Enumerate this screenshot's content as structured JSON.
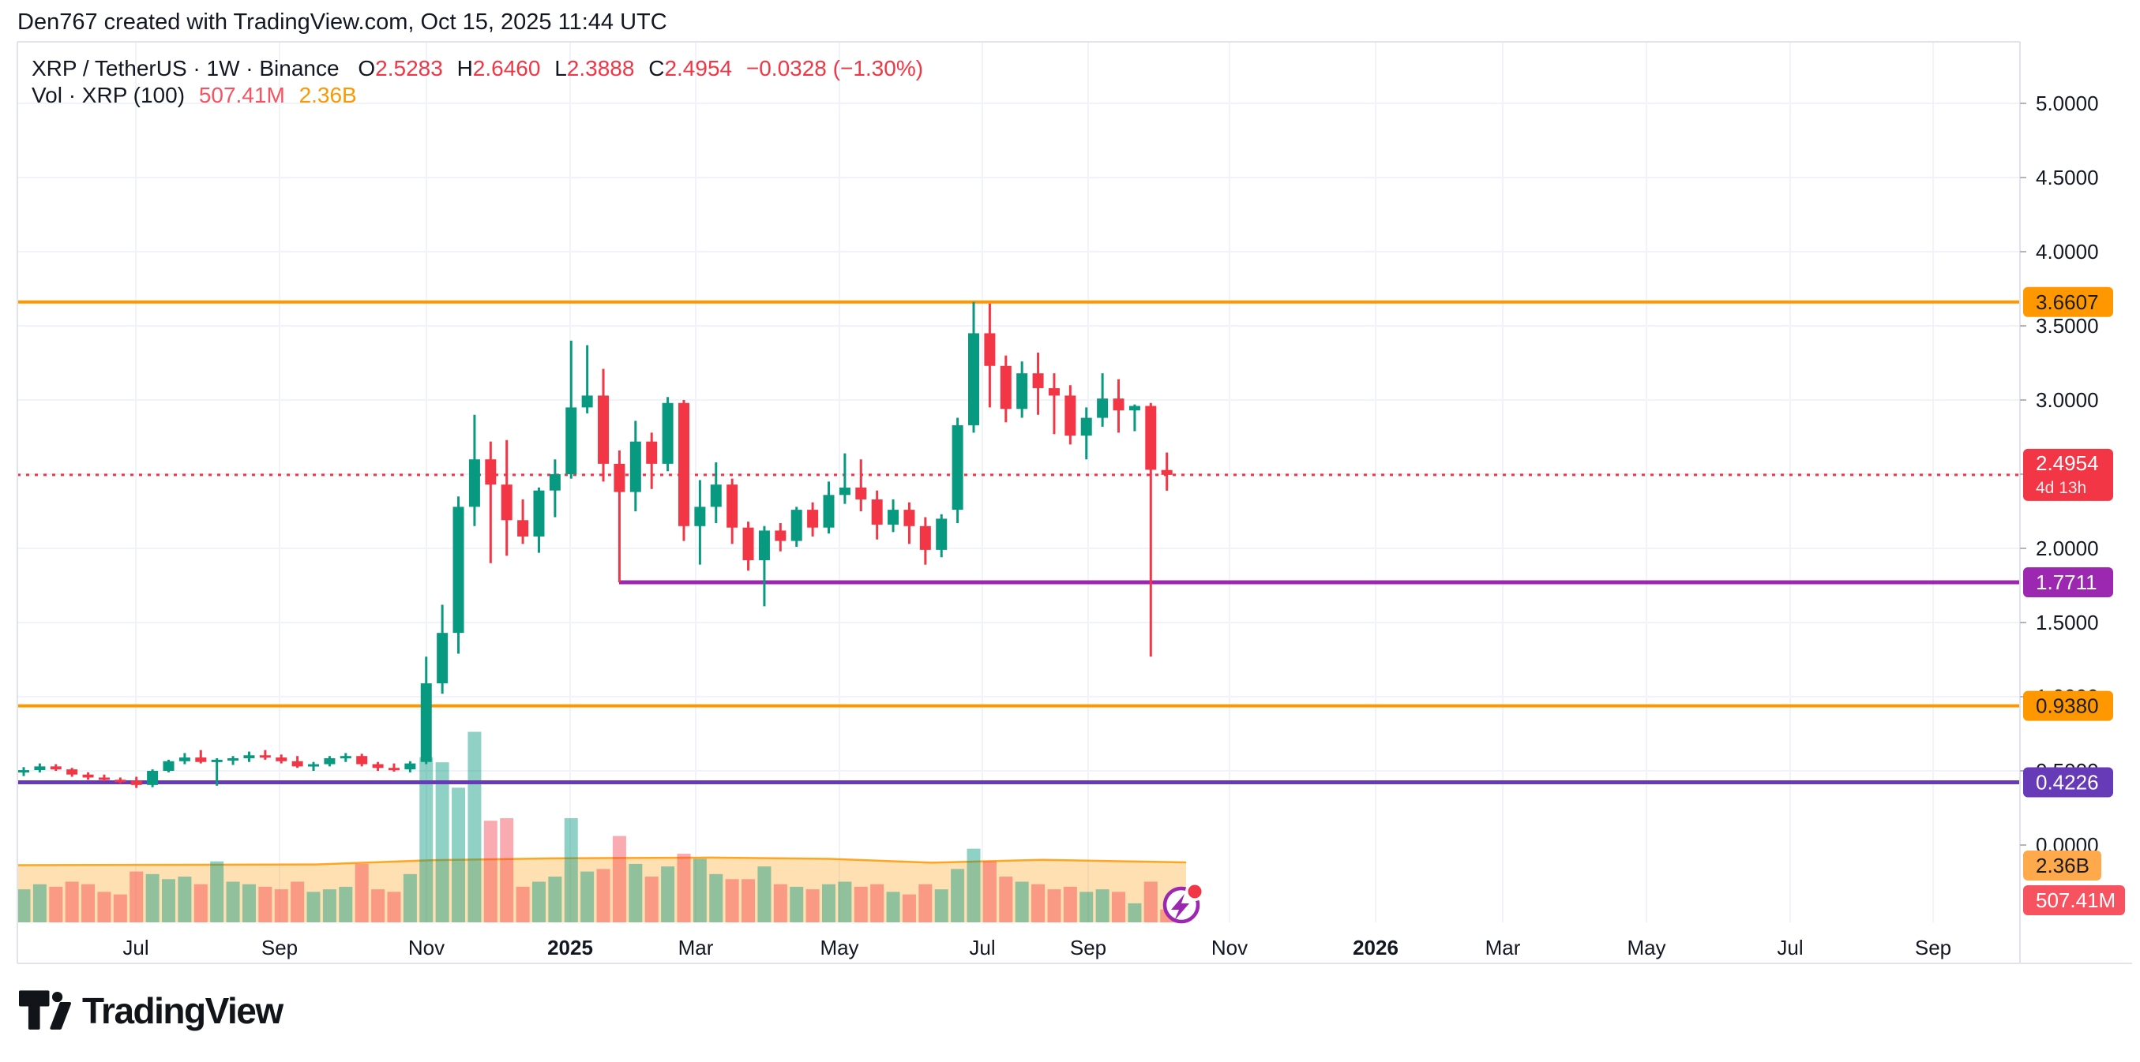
{
  "title": "Den767 created with TradingView.com, Oct 15, 2025 11:44 UTC",
  "legend": {
    "series_title": "XRP / TetherUS · 1W · Binance",
    "o_label": "O",
    "o": "2.5283",
    "h_label": "H",
    "h": "2.6460",
    "l_label": "L",
    "l": "2.3888",
    "c_label": "C",
    "c": "2.4954",
    "change": "−0.0328 (−1.30%)",
    "volume_label": "Vol · XRP (100)",
    "volume_value": "507.41M",
    "volume_ma": "2.36B"
  },
  "watermark": {
    "brand": "TradingView"
  },
  "colors": {
    "up": "#089981",
    "down": "#f23645",
    "vol_up": "rgba(8,153,129,0.45)",
    "vol_down": "rgba(242,54,69,0.42)",
    "vol_ma_fill": "rgba(255,152,0,0.30)",
    "vol_ma_edge": "rgba(255,152,0,0.85)",
    "grid": "#f0f3fa",
    "border": "#e0e3eb",
    "text": "#131722",
    "tick": "#b2b5be",
    "last_price": "#f23645",
    "flash_ring": "#9c27b0",
    "flash_dot": "#f23645"
  },
  "price_scale": {
    "labels": [
      {
        "label": "5.0000",
        "value": 5.0
      },
      {
        "label": "4.5000",
        "value": 4.5
      },
      {
        "label": "4.0000",
        "value": 4.0
      },
      {
        "label": "3.5000",
        "value": 3.5
      },
      {
        "label": "3.0000",
        "value": 3.0
      },
      {
        "label": "2.5000",
        "value": 2.5
      },
      {
        "label": "2.0000",
        "value": 2.0
      },
      {
        "label": "1.5000",
        "value": 1.5
      },
      {
        "label": "1.0000",
        "value": 1.0
      },
      {
        "label": "0.5000",
        "value": 0.5
      },
      {
        "label": "0.0000",
        "value": 0.0
      }
    ]
  },
  "time_axis": {
    "labels": [
      {
        "label": "Jul",
        "x": 172
      },
      {
        "label": "Sep",
        "x": 354
      },
      {
        "label": "Nov",
        "x": 540
      },
      {
        "label": "2025",
        "x": 722,
        "bold": true
      },
      {
        "label": "Mar",
        "x": 881
      },
      {
        "label": "May",
        "x": 1063
      },
      {
        "label": "Jul",
        "x": 1244
      },
      {
        "label": "Sep",
        "x": 1378
      },
      {
        "label": "Nov",
        "x": 1557
      },
      {
        "label": "2026",
        "x": 1742,
        "bold": true
      },
      {
        "label": "Mar",
        "x": 1903
      },
      {
        "label": "May",
        "x": 2085
      },
      {
        "label": "Jul",
        "x": 2267
      },
      {
        "label": "Sep",
        "x": 2448
      }
    ]
  },
  "levels": [
    {
      "label": "3.6607",
      "value": 3.6607,
      "color": "#ff9800",
      "badge_text_color": "#1c1c1c",
      "from_x": 22,
      "stroke_width": 4
    },
    {
      "label": "1.7711",
      "value": 1.7711,
      "color": "#9c27b0",
      "badge_text_color": "#ffffff",
      "from_x": 784,
      "stroke_width": 5
    },
    {
      "label": "0.9380",
      "value": 0.938,
      "color": "#ff9800",
      "badge_text_color": "#1c1c1c",
      "from_x": 22,
      "stroke_width": 4
    },
    {
      "label": "0.4226",
      "value": 0.4226,
      "color": "#673ab7",
      "badge_text_color": "#ffffff",
      "from_x": 22,
      "stroke_width": 5
    }
  ],
  "last_price": {
    "label": "2.4954",
    "value": 2.4954,
    "countdown": "4d 13h",
    "color": "#f23645"
  },
  "volume_badges": [
    {
      "label": "2.36B",
      "bg": "#ffa94d",
      "text_color": "#1c1c1c",
      "y": 1097
    },
    {
      "label": "507.41M",
      "bg": "#f7525f",
      "text_color": "#ffffff",
      "y": 1141
    }
  ],
  "chart_data": {
    "type": "candlestick-with-volume",
    "symbol": "XRP / TetherUS",
    "interval": "1W",
    "exchange": "Binance",
    "title": "XRP / TetherUS · 1W · Binance",
    "ylim": [
      0.0,
      5.4
    ],
    "grid": true,
    "price_gridline_step": 0.5,
    "current_bar": {
      "o": 2.5283,
      "h": 2.646,
      "l": 2.3888,
      "c": 2.4954,
      "change": -0.0328,
      "change_pct": -1.3,
      "volume": "507.41M"
    },
    "volume_ma_label": "2.36B",
    "volume_ma_b": 2.36,
    "volume_ma_profile": [
      [
        22,
        2.25
      ],
      [
        400,
        2.28
      ],
      [
        550,
        2.45
      ],
      [
        700,
        2.52
      ],
      [
        900,
        2.55
      ],
      [
        1050,
        2.5
      ],
      [
        1180,
        2.35
      ],
      [
        1320,
        2.46
      ],
      [
        1502,
        2.36
      ]
    ],
    "candles_format": [
      "open",
      "high",
      "low",
      "close",
      "volume_billions"
    ],
    "candles": [
      [
        0.5,
        0.525,
        0.465,
        0.505,
        1.3
      ],
      [
        0.505,
        0.55,
        0.49,
        0.53,
        1.5
      ],
      [
        0.53,
        0.545,
        0.5,
        0.51,
        1.4
      ],
      [
        0.51,
        0.52,
        0.46,
        0.475,
        1.6
      ],
      [
        0.475,
        0.49,
        0.44,
        0.455,
        1.5
      ],
      [
        0.455,
        0.475,
        0.43,
        0.44,
        1.2
      ],
      [
        0.44,
        0.455,
        0.415,
        0.435,
        1.1
      ],
      [
        0.435,
        0.46,
        0.385,
        0.405,
        2.0
      ],
      [
        0.405,
        0.51,
        0.39,
        0.5,
        1.9
      ],
      [
        0.5,
        0.575,
        0.49,
        0.565,
        1.7
      ],
      [
        0.565,
        0.62,
        0.545,
        0.59,
        1.8
      ],
      [
        0.59,
        0.64,
        0.55,
        0.56,
        1.5
      ],
      [
        0.56,
        0.585,
        0.4,
        0.575,
        2.4
      ],
      [
        0.575,
        0.6,
        0.54,
        0.585,
        1.6
      ],
      [
        0.585,
        0.63,
        0.56,
        0.605,
        1.5
      ],
      [
        0.605,
        0.64,
        0.575,
        0.59,
        1.4
      ],
      [
        0.59,
        0.61,
        0.55,
        0.565,
        1.3
      ],
      [
        0.565,
        0.6,
        0.52,
        0.53,
        1.6
      ],
      [
        0.53,
        0.56,
        0.5,
        0.545,
        1.2
      ],
      [
        0.545,
        0.6,
        0.53,
        0.585,
        1.3
      ],
      [
        0.585,
        0.62,
        0.56,
        0.6,
        1.4
      ],
      [
        0.6,
        0.615,
        0.53,
        0.545,
        2.3
      ],
      [
        0.545,
        0.56,
        0.5,
        0.52,
        1.3
      ],
      [
        0.52,
        0.55,
        0.495,
        0.51,
        1.2
      ],
      [
        0.51,
        0.565,
        0.49,
        0.55,
        1.9
      ],
      [
        0.56,
        1.27,
        0.545,
        1.09,
        6.5
      ],
      [
        1.09,
        1.62,
        1.02,
        1.43,
        6.3
      ],
      [
        1.43,
        2.35,
        1.29,
        2.28,
        5.3
      ],
      [
        2.28,
        2.9,
        2.15,
        2.6,
        7.5
      ],
      [
        2.6,
        2.72,
        1.9,
        2.43,
        4.0
      ],
      [
        2.43,
        2.73,
        1.95,
        2.19,
        4.1
      ],
      [
        2.19,
        2.33,
        2.03,
        2.08,
        1.4
      ],
      [
        2.08,
        2.41,
        1.97,
        2.39,
        1.6
      ],
      [
        2.39,
        2.6,
        2.21,
        2.5,
        1.8
      ],
      [
        2.5,
        3.4,
        2.47,
        2.95,
        4.1
      ],
      [
        2.95,
        3.37,
        2.91,
        3.03,
        2.0
      ],
      [
        3.03,
        3.21,
        2.45,
        2.57,
        2.1
      ],
      [
        2.57,
        2.66,
        1.7711,
        2.38,
        3.4
      ],
      [
        2.38,
        2.86,
        2.25,
        2.72,
        2.3
      ],
      [
        2.72,
        2.78,
        2.4,
        2.57,
        1.8
      ],
      [
        2.57,
        3.02,
        2.52,
        2.98,
        2.2
      ],
      [
        2.98,
        3.0,
        2.05,
        2.15,
        2.7
      ],
      [
        2.15,
        2.46,
        1.89,
        2.28,
        2.5
      ],
      [
        2.28,
        2.58,
        2.17,
        2.43,
        1.9
      ],
      [
        2.43,
        2.47,
        2.03,
        2.14,
        1.7
      ],
      [
        2.14,
        2.18,
        1.85,
        1.92,
        1.7
      ],
      [
        1.92,
        2.15,
        1.61,
        2.12,
        2.2
      ],
      [
        2.12,
        2.17,
        1.98,
        2.05,
        1.5
      ],
      [
        2.05,
        2.28,
        2.01,
        2.26,
        1.4
      ],
      [
        2.26,
        2.31,
        2.08,
        2.14,
        1.3
      ],
      [
        2.14,
        2.45,
        2.1,
        2.36,
        1.5
      ],
      [
        2.36,
        2.64,
        2.3,
        2.41,
        1.6
      ],
      [
        2.41,
        2.6,
        2.25,
        2.33,
        1.4
      ],
      [
        2.33,
        2.39,
        2.06,
        2.16,
        1.5
      ],
      [
        2.16,
        2.33,
        2.11,
        2.26,
        1.2
      ],
      [
        2.26,
        2.31,
        2.03,
        2.15,
        1.1
      ],
      [
        2.15,
        2.21,
        1.89,
        1.99,
        1.5
      ],
      [
        1.99,
        2.23,
        1.94,
        2.2,
        1.3
      ],
      [
        2.26,
        2.88,
        2.17,
        2.83,
        2.1
      ],
      [
        2.83,
        3.6607,
        2.78,
        3.45,
        2.9
      ],
      [
        3.45,
        3.65,
        2.95,
        3.23,
        2.4
      ],
      [
        3.23,
        3.3,
        2.85,
        2.94,
        1.8
      ],
      [
        2.94,
        3.26,
        2.88,
        3.18,
        1.6
      ],
      [
        3.18,
        3.32,
        2.9,
        3.08,
        1.5
      ],
      [
        3.08,
        3.18,
        2.77,
        3.03,
        1.3
      ],
      [
        3.03,
        3.1,
        2.7,
        2.76,
        1.4
      ],
      [
        2.76,
        2.95,
        2.6,
        2.88,
        1.2
      ],
      [
        2.88,
        3.18,
        2.82,
        3.01,
        1.3
      ],
      [
        3.01,
        3.14,
        2.78,
        2.93,
        1.2
      ],
      [
        2.93,
        2.97,
        2.79,
        2.96,
        0.75
      ],
      [
        2.96,
        2.98,
        1.27,
        2.53,
        1.6
      ],
      [
        2.5283,
        2.646,
        2.3888,
        2.4954,
        0.507
      ]
    ]
  }
}
